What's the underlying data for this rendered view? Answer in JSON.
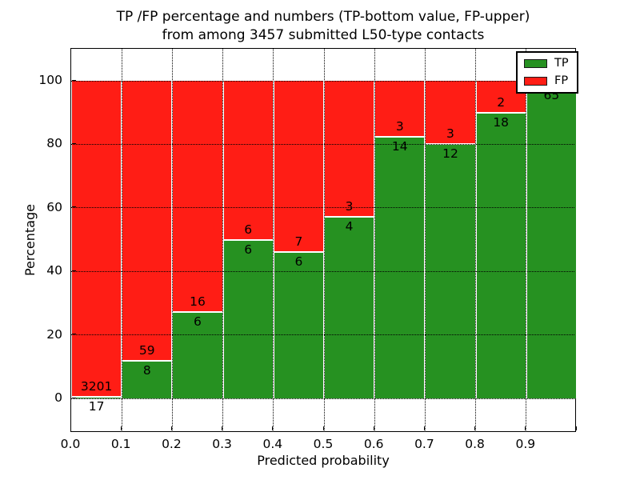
{
  "figure": {
    "title_line1": "TP /FP percentage and numbers (TP-bottom value, FP-upper)",
    "title_line2": "from among 3457 submitted L50-type contacts"
  },
  "chart_data": {
    "type": "bar",
    "variant": "stacked-100-percent",
    "title": "TP /FP percentage and numbers (TP-bottom value, FP-upper) from among 3457 submitted L50-type contacts",
    "xlabel": "Predicted probability",
    "ylabel": "Percentage",
    "total_submitted_contacts": 3457,
    "x_tick_labels": [
      "0.0",
      "0.1",
      "0.2",
      "0.3",
      "0.4",
      "0.5",
      "0.6",
      "0.7",
      "0.8",
      "0.9"
    ],
    "y_tick_labels": [
      "0",
      "20",
      "40",
      "60",
      "80",
      "100"
    ],
    "y_tick_values": [
      0,
      20,
      40,
      60,
      80,
      100
    ],
    "xlim": [
      0.0,
      1.0
    ],
    "ylim": [
      -10.8,
      110.1
    ],
    "grid": true,
    "legend_position": "upper-right",
    "colors": {
      "tp": "#269121",
      "fp": "#ff1d15"
    },
    "legend": [
      {
        "label": "TP",
        "series": "tp"
      },
      {
        "label": "FP",
        "series": "fp"
      }
    ],
    "bins": [
      {
        "range": [
          0.0,
          0.1
        ],
        "tp": 17,
        "fp": 3201,
        "tp_label": "17",
        "fp_label": "3201"
      },
      {
        "range": [
          0.1,
          0.2
        ],
        "tp": 8,
        "fp": 59,
        "tp_label": "8",
        "fp_label": "59"
      },
      {
        "range": [
          0.2,
          0.3
        ],
        "tp": 6,
        "fp": 16,
        "tp_label": "6",
        "fp_label": "16"
      },
      {
        "range": [
          0.3,
          0.4
        ],
        "tp": 6,
        "fp": 6,
        "tp_label": "6",
        "fp_label": "6"
      },
      {
        "range": [
          0.4,
          0.5
        ],
        "tp": 6,
        "fp": 7,
        "tp_label": "6",
        "fp_label": "7"
      },
      {
        "range": [
          0.5,
          0.6
        ],
        "tp": 4,
        "fp": 3,
        "tp_label": "4",
        "fp_label": "3"
      },
      {
        "range": [
          0.6,
          0.7
        ],
        "tp": 14,
        "fp": 3,
        "tp_label": "14",
        "fp_label": "3"
      },
      {
        "range": [
          0.7,
          0.8
        ],
        "tp": 12,
        "fp": 3,
        "tp_label": "12",
        "fp_label": "3"
      },
      {
        "range": [
          0.8,
          0.9
        ],
        "tp": 18,
        "fp": 2,
        "tp_label": "18",
        "fp_label": "2"
      },
      {
        "range": [
          0.9,
          1.0
        ],
        "tp": 65,
        "fp": 1,
        "tp_label": "65",
        "fp_label": ""
      }
    ]
  }
}
